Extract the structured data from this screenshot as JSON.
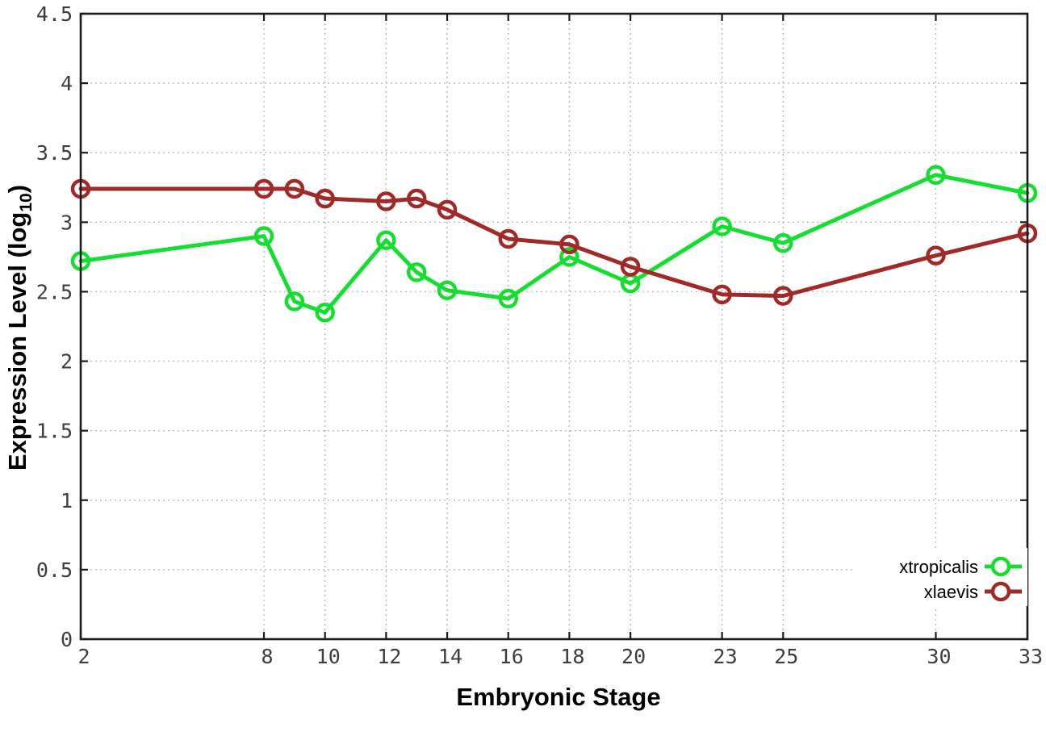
{
  "background": "#ffffff",
  "chart_data": {
    "type": "line",
    "title": "",
    "xlabel": "Embryonic Stage",
    "ylabel": {
      "main": "Expression Level (log",
      "sub": "10",
      "end": ")"
    },
    "ylabel_plain": "Expression Level (log10)",
    "xlim": [
      2,
      33
    ],
    "ylim": [
      0,
      4.5
    ],
    "x_ticks": [
      2,
      8,
      10,
      12,
      14,
      16,
      18,
      20,
      23,
      25,
      30,
      33
    ],
    "x_tick_labels": [
      "2",
      "8",
      "10",
      "12",
      "14",
      "16",
      "18",
      "20",
      "23",
      "25",
      "30",
      "33"
    ],
    "y_ticks": [
      0,
      0.5,
      1,
      1.5,
      2,
      2.5,
      3,
      3.5,
      4,
      4.5
    ],
    "y_tick_labels": [
      "0",
      "0.5",
      "1",
      "1.5",
      "2",
      "2.5",
      "3",
      "3.5",
      "4",
      "4.5"
    ],
    "grid": true,
    "grid_style": "dotted",
    "legend_position": "bottom-right",
    "x": [
      2,
      8,
      9,
      10,
      12,
      13,
      14,
      16,
      18,
      20,
      23,
      25,
      30,
      33
    ],
    "series": [
      {
        "name": "xtropicalis",
        "color": "#15DE31",
        "marker": "open-circle",
        "values": [
          2.72,
          2.9,
          2.43,
          2.35,
          2.87,
          2.64,
          2.51,
          2.45,
          2.75,
          2.56,
          2.97,
          2.85,
          3.34,
          3.21
        ]
      },
      {
        "name": "xlaevis",
        "color": "#A02A28",
        "marker": "open-circle",
        "values": [
          3.24,
          3.24,
          3.24,
          3.17,
          3.15,
          3.17,
          3.09,
          2.88,
          2.84,
          2.68,
          2.48,
          2.47,
          2.76,
          2.92
        ]
      }
    ],
    "colors": {
      "frame": "#1c1c1c",
      "grid": "#b8b8b8",
      "tick_text": "#3d3d3d",
      "label_text": "#000000",
      "legend_bg": "#ffffff"
    }
  }
}
